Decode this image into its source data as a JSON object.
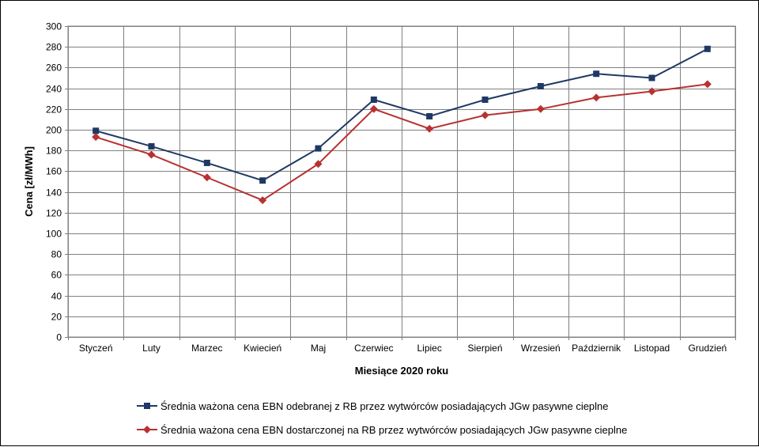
{
  "chart_data": {
    "type": "line",
    "categories": [
      "Styczeń",
      "Luty",
      "Marzec",
      "Kwiecień",
      "Maj",
      "Czerwiec",
      "Lipiec",
      "Sierpień",
      "Wrzesień",
      "Październik",
      "Listopad",
      "Grudzień"
    ],
    "series": [
      {
        "name": "Średnia ważona cena EBN odebranej z RB przez wytwórców posiadających JGw pasywne cieplne",
        "values": [
          199,
          184,
          168,
          151,
          182,
          229,
          213,
          229,
          242,
          254,
          250,
          278
        ],
        "color": "#1f3864",
        "marker": "square"
      },
      {
        "name": "Średnia ważona cena EBN dostarczonej na RB przez wytwórców posiadających JGw pasywne cieplne",
        "values": [
          193,
          176,
          154,
          132,
          167,
          220,
          201,
          214,
          220,
          231,
          237,
          244
        ],
        "color": "#b83232",
        "marker": "diamond"
      }
    ],
    "xlabel": "Miesiące 2020  roku",
    "ylabel": "Cena [zł/MWh]",
    "ylim": [
      0,
      300
    ],
    "yticks": [
      0,
      20,
      40,
      60,
      80,
      100,
      120,
      140,
      160,
      180,
      200,
      220,
      240,
      260,
      280,
      300
    ],
    "grid": true,
    "legend_position": "bottom"
  }
}
